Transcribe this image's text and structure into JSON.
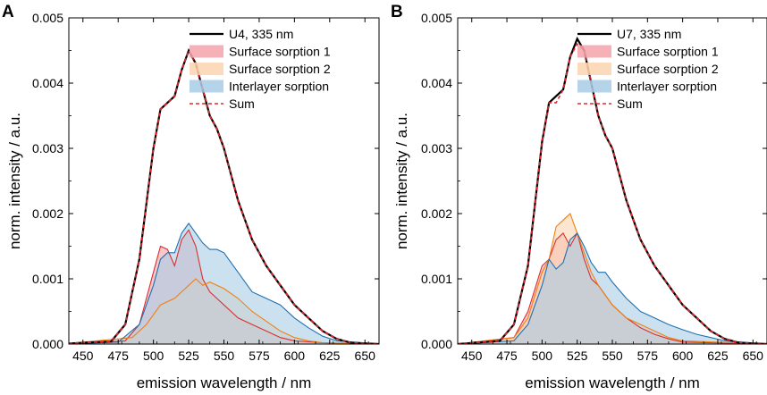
{
  "chart_data": [
    {
      "type": "area",
      "panel": "A",
      "xlabel": "emission wavelength / nm",
      "ylabel": "norm. intensity / a.u.",
      "xlim": [
        440,
        660
      ],
      "ylim": [
        0,
        0.005
      ],
      "x_ticks": [
        "450",
        "475",
        "500",
        "525",
        "550",
        "575",
        "600",
        "625",
        "650"
      ],
      "y_ticks": [
        "0.000",
        "0.001",
        "0.002",
        "0.003",
        "0.004",
        "0.005"
      ],
      "legend_position": "top-right",
      "series": [
        {
          "name": "U4, 335 nm",
          "style": "line",
          "color": "#000000",
          "points": [
            [
              440,
              1e-05
            ],
            [
              470,
              4e-05
            ],
            [
              480,
              0.0003
            ],
            [
              490,
              0.0013
            ],
            [
              500,
              0.003
            ],
            [
              505,
              0.0036
            ],
            [
              510,
              0.0037
            ],
            [
              515,
              0.0038
            ],
            [
              520,
              0.0042
            ],
            [
              525,
              0.0045
            ],
            [
              530,
              0.0043
            ],
            [
              535,
              0.0039
            ],
            [
              540,
              0.0035
            ],
            [
              545,
              0.0033
            ],
            [
              550,
              0.003
            ],
            [
              560,
              0.0022
            ],
            [
              570,
              0.0016
            ],
            [
              580,
              0.0012
            ],
            [
              590,
              0.0009
            ],
            [
              600,
              0.0006
            ],
            [
              610,
              0.0004
            ],
            [
              620,
              0.0002
            ],
            [
              630,
              8e-05
            ],
            [
              640,
              2e-05
            ],
            [
              660,
              0.0
            ]
          ]
        },
        {
          "name": "Surface sorption 1",
          "style": "fill",
          "color": "#d73030",
          "fill": "#f4a3ac",
          "points": [
            [
              440,
              1e-05
            ],
            [
              480,
              5e-05
            ],
            [
              490,
              0.0003
            ],
            [
              500,
              0.0011
            ],
            [
              505,
              0.0015
            ],
            [
              510,
              0.00145
            ],
            [
              515,
              0.0012
            ],
            [
              520,
              0.0016
            ],
            [
              525,
              0.00175
            ],
            [
              530,
              0.0015
            ],
            [
              535,
              0.001
            ],
            [
              540,
              0.0008
            ],
            [
              545,
              0.0007
            ],
            [
              550,
              0.0006
            ],
            [
              560,
              0.0004
            ],
            [
              570,
              0.0003
            ],
            [
              580,
              0.0002
            ],
            [
              590,
              0.0001
            ],
            [
              600,
              5e-05
            ],
            [
              620,
              2e-05
            ],
            [
              660,
              0.0
            ]
          ]
        },
        {
          "name": "Surface sorption 2",
          "style": "fill",
          "color": "#f08010",
          "fill": "#fbd5b0",
          "points": [
            [
              440,
              1e-05
            ],
            [
              485,
              0.0001
            ],
            [
              495,
              0.0003
            ],
            [
              505,
              0.0006
            ],
            [
              515,
              0.0007
            ],
            [
              520,
              0.0008
            ],
            [
              525,
              0.0009
            ],
            [
              530,
              0.001
            ],
            [
              535,
              0.0009
            ],
            [
              540,
              0.00095
            ],
            [
              550,
              0.00085
            ],
            [
              560,
              0.0007
            ],
            [
              570,
              0.0005
            ],
            [
              580,
              0.00035
            ],
            [
              590,
              0.0002
            ],
            [
              600,
              0.0001
            ],
            [
              610,
              5e-05
            ],
            [
              620,
              2e-05
            ],
            [
              660,
              0.0
            ]
          ]
        },
        {
          "name": "Interlayer sorption",
          "style": "fill",
          "color": "#2070b0",
          "fill": "#a8cde6",
          "points": [
            [
              440,
              0.0
            ],
            [
              475,
              3e-05
            ],
            [
              490,
              0.0003
            ],
            [
              500,
              0.0009
            ],
            [
              505,
              0.0013
            ],
            [
              510,
              0.0014
            ],
            [
              515,
              0.0014
            ],
            [
              520,
              0.0017
            ],
            [
              525,
              0.00185
            ],
            [
              530,
              0.0017
            ],
            [
              535,
              0.00155
            ],
            [
              540,
              0.00145
            ],
            [
              545,
              0.00145
            ],
            [
              550,
              0.0014
            ],
            [
              560,
              0.0011
            ],
            [
              570,
              0.0008
            ],
            [
              580,
              0.0007
            ],
            [
              590,
              0.0006
            ],
            [
              600,
              0.0004
            ],
            [
              610,
              0.00025
            ],
            [
              620,
              0.00012
            ],
            [
              630,
              5e-05
            ],
            [
              660,
              0.0
            ]
          ]
        },
        {
          "name": "Sum",
          "style": "dash",
          "color": "#e8262b",
          "points": [
            [
              440,
              1e-05
            ],
            [
              470,
              4e-05
            ],
            [
              480,
              0.0003
            ],
            [
              490,
              0.0013
            ],
            [
              500,
              0.003
            ],
            [
              505,
              0.0036
            ],
            [
              510,
              0.0037
            ],
            [
              515,
              0.0038
            ],
            [
              520,
              0.0042
            ],
            [
              525,
              0.0045
            ],
            [
              530,
              0.0043
            ],
            [
              535,
              0.0039
            ],
            [
              540,
              0.0035
            ],
            [
              545,
              0.0033
            ],
            [
              550,
              0.003
            ],
            [
              560,
              0.0022
            ],
            [
              570,
              0.0016
            ],
            [
              580,
              0.0012
            ],
            [
              590,
              0.0009
            ],
            [
              600,
              0.0006
            ],
            [
              610,
              0.0004
            ],
            [
              620,
              0.0002
            ],
            [
              630,
              8e-05
            ],
            [
              640,
              2e-05
            ],
            [
              660,
              0.0
            ]
          ]
        }
      ]
    },
    {
      "type": "area",
      "panel": "B",
      "xlabel": "emission wavelength / nm",
      "ylabel": "norm. intensity / a.u.",
      "xlim": [
        440,
        660
      ],
      "ylim": [
        0,
        0.005
      ],
      "x_ticks": [
        "450",
        "475",
        "500",
        "525",
        "550",
        "575",
        "600",
        "625",
        "650"
      ],
      "y_ticks": [
        "0.000",
        "0.001",
        "0.002",
        "0.003",
        "0.004",
        "0.005"
      ],
      "legend_position": "top-right",
      "series": [
        {
          "name": "U7, 335 nm",
          "style": "line",
          "color": "#000000",
          "points": [
            [
              440,
              0.0
            ],
            [
              470,
              5e-05
            ],
            [
              480,
              0.0003
            ],
            [
              490,
              0.0012
            ],
            [
              500,
              0.0031
            ],
            [
              505,
              0.0037
            ],
            [
              510,
              0.0038
            ],
            [
              515,
              0.0039
            ],
            [
              520,
              0.0044
            ],
            [
              525,
              0.00468
            ],
            [
              530,
              0.0045
            ],
            [
              535,
              0.004
            ],
            [
              540,
              0.0035
            ],
            [
              545,
              0.0032
            ],
            [
              550,
              0.003
            ],
            [
              560,
              0.0022
            ],
            [
              570,
              0.0016
            ],
            [
              580,
              0.0012
            ],
            [
              590,
              0.0009
            ],
            [
              600,
              0.0006
            ],
            [
              610,
              0.0004
            ],
            [
              620,
              0.0002
            ],
            [
              630,
              8e-05
            ],
            [
              640,
              2e-05
            ],
            [
              660,
              0.0
            ]
          ]
        },
        {
          "name": "Surface sorption 1",
          "style": "fill",
          "color": "#d73030",
          "fill": "#f4a3ac",
          "points": [
            [
              440,
              0.0
            ],
            [
              480,
              0.0001
            ],
            [
              490,
              0.0005
            ],
            [
              500,
              0.0012
            ],
            [
              505,
              0.0013
            ],
            [
              510,
              0.0016
            ],
            [
              515,
              0.0017
            ],
            [
              520,
              0.0015
            ],
            [
              525,
              0.0017
            ],
            [
              530,
              0.0013
            ],
            [
              535,
              0.001
            ],
            [
              540,
              0.0009
            ],
            [
              550,
              0.0006
            ],
            [
              560,
              0.0004
            ],
            [
              570,
              0.00025
            ],
            [
              580,
              0.00015
            ],
            [
              590,
              8e-05
            ],
            [
              600,
              3e-05
            ],
            [
              660,
              0.0
            ]
          ]
        },
        {
          "name": "Surface sorption 2",
          "style": "fill",
          "color": "#f08010",
          "fill": "#fbd5b0",
          "points": [
            [
              440,
              0.0
            ],
            [
              480,
              0.0001
            ],
            [
              490,
              0.0004
            ],
            [
              500,
              0.0011
            ],
            [
              505,
              0.0013
            ],
            [
              510,
              0.0018
            ],
            [
              515,
              0.0019
            ],
            [
              520,
              0.002
            ],
            [
              525,
              0.0017
            ],
            [
              530,
              0.0014
            ],
            [
              535,
              0.0011
            ],
            [
              540,
              0.0009
            ],
            [
              550,
              0.0006
            ],
            [
              560,
              0.0004
            ],
            [
              570,
              0.0003
            ],
            [
              580,
              0.0002
            ],
            [
              590,
              0.0001
            ],
            [
              600,
              5e-05
            ],
            [
              660,
              0.0
            ]
          ]
        },
        {
          "name": "Interlayer sorption",
          "style": "fill",
          "color": "#2070b0",
          "fill": "#a8cde6",
          "points": [
            [
              440,
              0.0
            ],
            [
              480,
              5e-05
            ],
            [
              490,
              0.0003
            ],
            [
              500,
              0.0009
            ],
            [
              505,
              0.0013
            ],
            [
              510,
              0.00115
            ],
            [
              515,
              0.00125
            ],
            [
              520,
              0.0016
            ],
            [
              525,
              0.0017
            ],
            [
              530,
              0.0015
            ],
            [
              535,
              0.00125
            ],
            [
              540,
              0.0011
            ],
            [
              545,
              0.0011
            ],
            [
              550,
              0.00095
            ],
            [
              560,
              0.0007
            ],
            [
              570,
              0.0005
            ],
            [
              580,
              0.0004
            ],
            [
              590,
              0.0003
            ],
            [
              600,
              0.00022
            ],
            [
              610,
              0.00015
            ],
            [
              620,
              0.0001
            ],
            [
              630,
              5e-05
            ],
            [
              660,
              0.0
            ]
          ]
        },
        {
          "name": "Sum",
          "style": "dash",
          "color": "#e8262b",
          "points": [
            [
              440,
              0.0
            ],
            [
              470,
              5e-05
            ],
            [
              480,
              0.0003
            ],
            [
              490,
              0.0012
            ],
            [
              500,
              0.0031
            ],
            [
              505,
              0.0037
            ],
            [
              510,
              0.0037
            ],
            [
              515,
              0.0039
            ],
            [
              520,
              0.0044
            ],
            [
              525,
              0.0046
            ],
            [
              530,
              0.0045
            ],
            [
              535,
              0.004
            ],
            [
              540,
              0.0035
            ],
            [
              545,
              0.0032
            ],
            [
              550,
              0.003
            ],
            [
              560,
              0.0022
            ],
            [
              570,
              0.0016
            ],
            [
              580,
              0.0012
            ],
            [
              590,
              0.0009
            ],
            [
              600,
              0.0006
            ],
            [
              610,
              0.0004
            ],
            [
              620,
              0.0002
            ],
            [
              630,
              8e-05
            ],
            [
              640,
              2e-05
            ],
            [
              660,
              0.0
            ]
          ]
        }
      ]
    }
  ]
}
